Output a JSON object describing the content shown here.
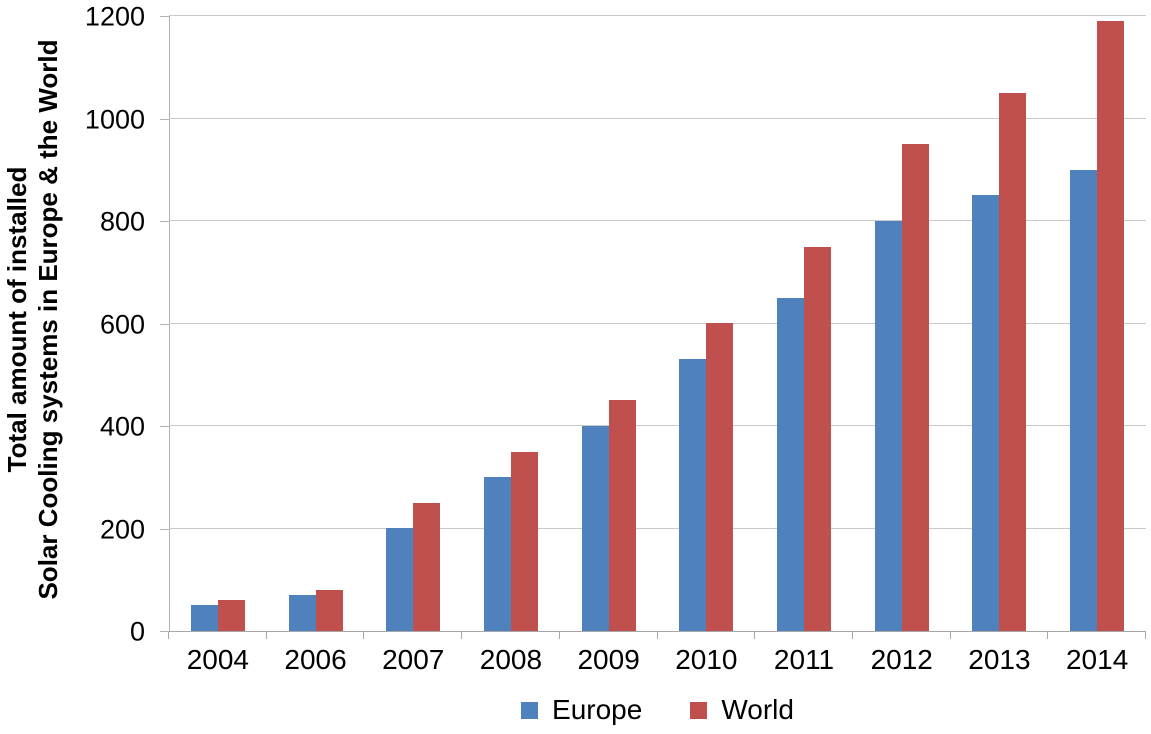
{
  "chart_data": {
    "type": "bar",
    "title": "",
    "xlabel": "",
    "ylabel": "Total amount of installed Solar Cooling systems in Europe & the World",
    "ylabel_lines": [
      "Total amount of installed",
      "Solar Cooling systems in Europe & the World"
    ],
    "categories": [
      "2004",
      "2006",
      "2007",
      "2008",
      "2009",
      "2010",
      "2011",
      "2012",
      "2013",
      "2014"
    ],
    "series": [
      {
        "name": "Europe",
        "color": "#4F81BD",
        "values": [
          50,
          70,
          200,
          300,
          400,
          530,
          650,
          800,
          850,
          900
        ]
      },
      {
        "name": "World",
        "color": "#C0504D",
        "values": [
          60,
          80,
          250,
          350,
          450,
          600,
          750,
          950,
          1050,
          1190
        ]
      }
    ],
    "ylim": [
      0,
      1200
    ],
    "ytick_step": 200,
    "grid": true,
    "legend_position": "bottom",
    "colors": {
      "gridline": "#C9C9C9",
      "axis": "#A6A6A6",
      "text": "#000000",
      "background": "#FFFFFF"
    }
  }
}
